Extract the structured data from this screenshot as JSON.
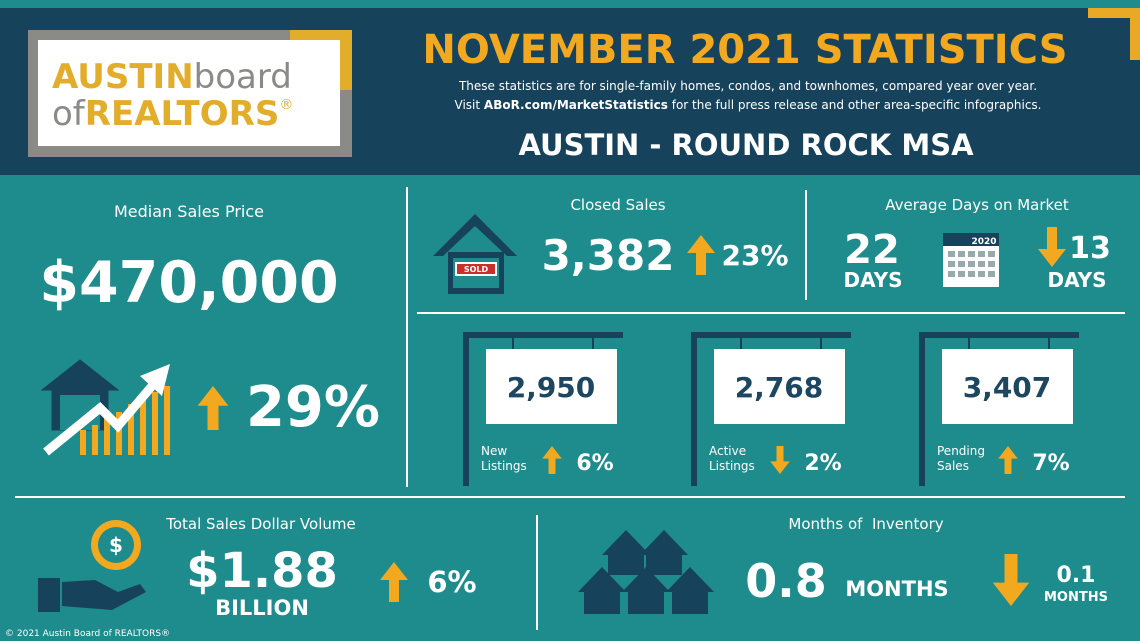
{
  "header": {
    "logo": {
      "line1_bold": "AUSTIN",
      "line1": "board",
      "line2": "of",
      "line2_bold": "REALTORS",
      "mark": "®"
    },
    "title": "NOVEMBER 2021 STATISTICS",
    "subtitle_line1": "These statistics are for single-family homes, condos, and townhomes, compared year over year.",
    "subtitle_line2": {
      "before": "Visit ",
      "link": "ABoR.com/MarketStatistics",
      "after": " for the full press release and other area-specific infographics."
    },
    "region": "AUSTIN - ROUND ROCK MSA"
  },
  "median_price": {
    "label": "Median Sales Price",
    "value": "$470,000",
    "change": "29%"
  },
  "closed_sales": {
    "label": "Closed Sales",
    "sign": "SOLD",
    "value": "3,382",
    "change": "23%"
  },
  "days_on_market": {
    "label": "Average Days on Market",
    "value": "22",
    "unit": "DAYS",
    "calendar": "2020",
    "change": "13",
    "change_unit": "DAYS"
  },
  "listings": [
    {
      "value": "2,950",
      "label_lines": [
        "New",
        "Listings"
      ],
      "change": "6%"
    },
    {
      "value": "2,768",
      "label_lines": [
        "Active",
        "Listings"
      ],
      "change": "2%"
    },
    {
      "value": "3,407",
      "label_lines": [
        "Pending",
        "Sales"
      ],
      "change": "7%"
    }
  ],
  "dollar_volume": {
    "label": "Total Sales Dollar Volume",
    "value": "$1.88",
    "unit": "BILLION",
    "change": "6%"
  },
  "inventory": {
    "label": "Months of  Inventory",
    "value": "0.8",
    "unit": "MONTHS",
    "change": "0.1",
    "change_unit": "MONTHS"
  },
  "footer": "© 2021 Austin Board of REALTORS®"
}
